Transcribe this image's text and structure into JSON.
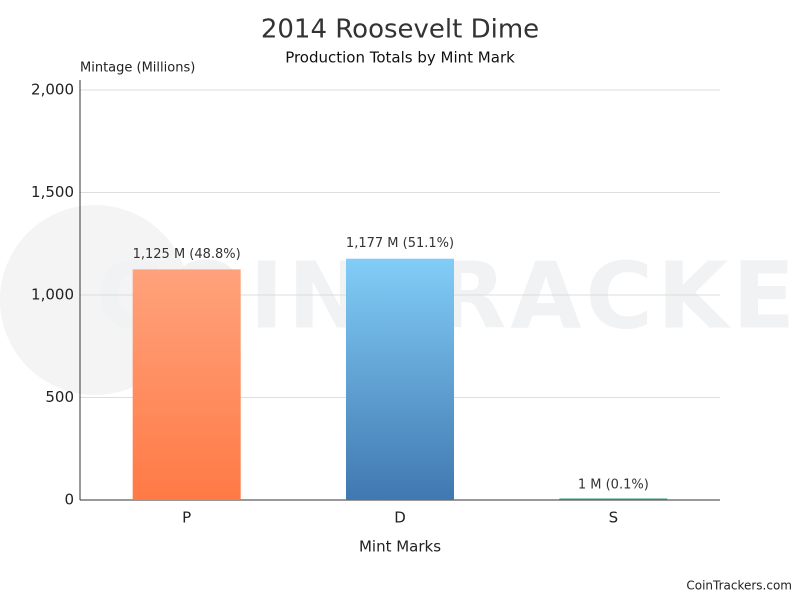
{
  "chart_data": {
    "type": "bar",
    "title": "2014 Roosevelt Dime",
    "subtitle": "Production Totals by Mint Mark",
    "y_label": "Mintage (Millions)",
    "x_label": "Mint Marks",
    "categories": [
      "P",
      "D",
      "S"
    ],
    "values": [
      1125,
      1177,
      1
    ],
    "value_labels": [
      "1,125 M (48.8%)",
      "1,177 M (51.1%)",
      "1 M (0.1%)"
    ],
    "colors": [
      [
        "#ffa27c",
        "#ff7a45"
      ],
      [
        "#82cdf7",
        "#4078b0"
      ],
      [
        "#3aa68a",
        "#2a7d6a"
      ]
    ],
    "ylim": [
      0,
      2000
    ],
    "yticks": [
      0,
      500,
      {
        "value": 1000,
        "label": "1,000"
      },
      {
        "value": 1500,
        "label": "1,500"
      },
      {
        "value": 2000,
        "label": "2,000"
      }
    ],
    "grid": true,
    "watermark": "COINTRACKERS",
    "footer": "CoinTrackers.com"
  }
}
